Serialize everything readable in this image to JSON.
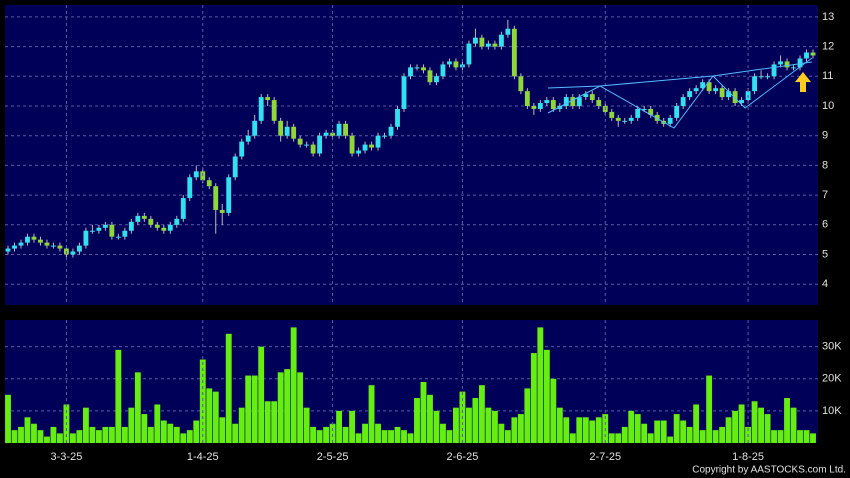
{
  "chart_data": [
    {
      "type": "candlestick",
      "up_color": "#33e0f0",
      "down_color": "#8fd63a",
      "grid": true,
      "ylim": [
        3.3,
        13.4
      ],
      "yticks": [
        4,
        5,
        6,
        7,
        8,
        9,
        10,
        11,
        12,
        13
      ],
      "ohlc": [
        [
          5.1,
          5.3,
          5.0,
          5.2
        ],
        [
          5.2,
          5.4,
          5.1,
          5.3
        ],
        [
          5.3,
          5.5,
          5.2,
          5.4
        ],
        [
          5.4,
          5.7,
          5.3,
          5.6
        ],
        [
          5.6,
          5.7,
          5.4,
          5.5
        ],
        [
          5.5,
          5.6,
          5.3,
          5.4
        ],
        [
          5.4,
          5.5,
          5.2,
          5.3
        ],
        [
          5.3,
          5.4,
          5.2,
          5.3
        ],
        [
          5.3,
          5.4,
          5.1,
          5.2
        ],
        [
          5.2,
          5.3,
          4.9,
          5.0
        ],
        [
          5.0,
          5.2,
          4.9,
          5.1
        ],
        [
          5.1,
          5.4,
          5.0,
          5.3
        ],
        [
          5.3,
          5.9,
          5.2,
          5.8
        ],
        [
          5.8,
          6.0,
          5.7,
          5.8
        ],
        [
          5.8,
          6.0,
          5.7,
          5.9
        ],
        [
          5.9,
          6.1,
          5.8,
          6.0
        ],
        [
          6.0,
          6.1,
          5.5,
          5.6
        ],
        [
          5.6,
          5.7,
          5.5,
          5.6
        ],
        [
          5.6,
          5.9,
          5.5,
          5.8
        ],
        [
          5.8,
          6.2,
          5.7,
          6.1
        ],
        [
          6.1,
          6.4,
          6.0,
          6.3
        ],
        [
          6.3,
          6.4,
          6.1,
          6.2
        ],
        [
          6.2,
          6.3,
          5.9,
          6.0
        ],
        [
          6.0,
          6.1,
          5.8,
          5.9
        ],
        [
          5.9,
          6.0,
          5.7,
          5.8
        ],
        [
          5.8,
          6.1,
          5.7,
          6.0
        ],
        [
          6.0,
          6.3,
          5.9,
          6.2
        ],
        [
          6.2,
          7.0,
          6.1,
          6.9
        ],
        [
          6.9,
          7.7,
          6.8,
          7.6
        ],
        [
          7.6,
          8.0,
          7.5,
          7.8
        ],
        [
          7.8,
          7.9,
          7.4,
          7.5
        ],
        [
          7.5,
          7.6,
          7.2,
          7.3
        ],
        [
          7.3,
          7.4,
          5.7,
          6.5
        ],
        [
          6.5,
          6.7,
          6.0,
          6.4
        ],
        [
          6.4,
          7.7,
          6.3,
          7.6
        ],
        [
          7.6,
          8.4,
          7.5,
          8.3
        ],
        [
          8.3,
          8.9,
          8.2,
          8.8
        ],
        [
          8.8,
          9.2,
          8.7,
          9.0
        ],
        [
          9.0,
          9.7,
          8.9,
          9.5
        ],
        [
          9.5,
          10.4,
          9.4,
          10.3
        ],
        [
          10.3,
          10.4,
          10.0,
          10.2
        ],
        [
          10.2,
          10.3,
          9.4,
          9.5
        ],
        [
          9.5,
          9.6,
          8.8,
          9.0
        ],
        [
          9.0,
          9.5,
          8.9,
          9.3
        ],
        [
          9.3,
          9.4,
          8.8,
          8.9
        ],
        [
          8.9,
          9.0,
          8.6,
          8.7
        ],
        [
          8.7,
          8.8,
          8.6,
          8.7
        ],
        [
          8.7,
          8.8,
          8.3,
          8.4
        ],
        [
          8.4,
          9.1,
          8.3,
          9.0
        ],
        [
          9.0,
          9.2,
          8.9,
          9.1
        ],
        [
          9.1,
          9.2,
          8.9,
          9.0
        ],
        [
          9.0,
          9.5,
          8.9,
          9.4
        ],
        [
          9.4,
          9.5,
          8.9,
          9.0
        ],
        [
          9.0,
          9.1,
          8.3,
          8.4
        ],
        [
          8.4,
          8.6,
          8.3,
          8.5
        ],
        [
          8.5,
          8.8,
          8.4,
          8.7
        ],
        [
          8.7,
          8.8,
          8.5,
          8.6
        ],
        [
          8.6,
          9.1,
          8.5,
          9.0
        ],
        [
          9.0,
          9.1,
          8.9,
          9.0
        ],
        [
          9.0,
          9.4,
          8.9,
          9.3
        ],
        [
          9.3,
          10.0,
          9.2,
          9.9
        ],
        [
          9.9,
          11.1,
          9.8,
          11.0
        ],
        [
          11.0,
          11.4,
          10.9,
          11.3
        ],
        [
          11.3,
          11.4,
          11.2,
          11.3
        ],
        [
          11.3,
          11.4,
          11.1,
          11.2
        ],
        [
          11.2,
          11.3,
          10.7,
          10.8
        ],
        [
          10.8,
          11.1,
          10.7,
          11.0
        ],
        [
          11.0,
          11.5,
          10.9,
          11.4
        ],
        [
          11.4,
          11.6,
          11.3,
          11.5
        ],
        [
          11.5,
          11.6,
          11.2,
          11.3
        ],
        [
          11.3,
          11.5,
          11.2,
          11.4
        ],
        [
          11.4,
          12.2,
          11.3,
          12.1
        ],
        [
          12.1,
          12.6,
          12.0,
          12.3
        ],
        [
          12.3,
          12.4,
          11.9,
          12.0
        ],
        [
          12.0,
          12.2,
          11.9,
          12.1
        ],
        [
          12.1,
          12.2,
          11.9,
          12.0
        ],
        [
          12.0,
          12.5,
          11.9,
          12.4
        ],
        [
          12.4,
          12.9,
          12.3,
          12.6
        ],
        [
          12.6,
          12.7,
          10.9,
          11.0
        ],
        [
          11.0,
          11.1,
          10.4,
          10.5
        ],
        [
          10.5,
          10.6,
          9.9,
          10.0
        ],
        [
          10.0,
          10.1,
          9.7,
          9.9
        ],
        [
          9.9,
          10.2,
          9.8,
          10.1
        ],
        [
          10.1,
          10.3,
          10.0,
          10.2
        ],
        [
          10.2,
          10.3,
          9.8,
          9.9
        ],
        [
          9.9,
          10.1,
          9.8,
          10.0
        ],
        [
          10.0,
          10.4,
          9.9,
          10.3
        ],
        [
          10.3,
          10.4,
          9.9,
          10.0
        ],
        [
          10.0,
          10.4,
          9.9,
          10.3
        ],
        [
          10.3,
          10.5,
          10.2,
          10.4
        ],
        [
          10.4,
          10.5,
          10.1,
          10.2
        ],
        [
          10.2,
          10.3,
          9.9,
          10.0
        ],
        [
          10.0,
          10.1,
          9.7,
          9.8
        ],
        [
          9.8,
          9.9,
          9.5,
          9.6
        ],
        [
          9.6,
          9.7,
          9.3,
          9.5
        ],
        [
          9.5,
          9.6,
          9.4,
          9.5
        ],
        [
          9.5,
          9.7,
          9.4,
          9.6
        ],
        [
          9.6,
          10.0,
          9.5,
          9.9
        ],
        [
          9.9,
          10.0,
          9.8,
          9.9
        ],
        [
          9.9,
          10.0,
          9.6,
          9.7
        ],
        [
          9.7,
          9.8,
          9.4,
          9.5
        ],
        [
          9.5,
          9.6,
          9.3,
          9.4
        ],
        [
          9.4,
          9.7,
          9.3,
          9.6
        ],
        [
          9.6,
          10.1,
          9.5,
          10.0
        ],
        [
          10.0,
          10.4,
          9.9,
          10.3
        ],
        [
          10.3,
          10.6,
          10.2,
          10.5
        ],
        [
          10.5,
          10.7,
          10.4,
          10.6
        ],
        [
          10.6,
          10.9,
          10.5,
          10.8
        ],
        [
          10.8,
          10.9,
          10.4,
          10.5
        ],
        [
          10.5,
          10.7,
          10.4,
          10.6
        ],
        [
          10.6,
          10.7,
          10.2,
          10.3
        ],
        [
          10.3,
          10.6,
          10.2,
          10.5
        ],
        [
          10.5,
          10.6,
          10.0,
          10.1
        ],
        [
          10.1,
          10.3,
          10.0,
          10.2
        ],
        [
          10.2,
          10.6,
          10.1,
          10.5
        ],
        [
          10.5,
          11.1,
          10.4,
          11.0
        ],
        [
          11.0,
          11.2,
          10.9,
          11.0
        ],
        [
          11.0,
          11.1,
          10.9,
          11.0
        ],
        [
          11.0,
          11.5,
          10.9,
          11.4
        ],
        [
          11.4,
          11.7,
          11.3,
          11.5
        ],
        [
          11.5,
          11.6,
          11.2,
          11.3
        ],
        [
          11.3,
          11.4,
          11.2,
          11.3
        ],
        [
          11.3,
          11.7,
          11.2,
          11.6
        ],
        [
          11.6,
          11.9,
          11.5,
          11.8
        ],
        [
          11.8,
          11.9,
          11.6,
          11.7
        ]
      ]
    },
    {
      "type": "bar",
      "color": "#66ee11",
      "grid": true,
      "ylim": [
        0,
        38300
      ],
      "yticks": [
        {
          "value": 10000,
          "label": "10K"
        },
        {
          "value": 20000,
          "label": "20K"
        },
        {
          "value": 30000,
          "label": "30K"
        }
      ],
      "categories": [
        null,
        null,
        null,
        null,
        null,
        null,
        null,
        null,
        null,
        "3-3-25",
        null,
        null,
        null,
        null,
        null,
        null,
        null,
        null,
        null,
        null,
        null,
        null,
        null,
        null,
        null,
        null,
        null,
        null,
        null,
        null,
        "1-4-25",
        null,
        null,
        null,
        null,
        null,
        null,
        null,
        null,
        null,
        null,
        null,
        null,
        null,
        null,
        null,
        null,
        null,
        null,
        null,
        "2-5-25",
        null,
        null,
        null,
        null,
        null,
        null,
        null,
        null,
        null,
        null,
        null,
        null,
        null,
        null,
        null,
        null,
        null,
        null,
        null,
        "2-6-25",
        null,
        null,
        null,
        null,
        null,
        null,
        null,
        null,
        null,
        null,
        null,
        null,
        null,
        null,
        null,
        null,
        null,
        null,
        null,
        null,
        null,
        "2-7-25",
        null,
        null,
        null,
        null,
        null,
        null,
        null,
        null,
        null,
        null,
        null,
        null,
        null,
        null,
        null,
        null,
        null,
        null,
        null,
        null,
        null,
        "1-8-25",
        null,
        null,
        null,
        null,
        null,
        null,
        null,
        null,
        null,
        null
      ],
      "values": [
        15000,
        4000,
        5000,
        8000,
        6000,
        4000,
        2000,
        5000,
        3000,
        12000,
        3000,
        4000,
        11000,
        5000,
        4000,
        5000,
        5000,
        29000,
        5000,
        11000,
        22000,
        9000,
        5000,
        12000,
        7000,
        6000,
        5000,
        3000,
        4000,
        7000,
        26000,
        17000,
        16000,
        8000,
        34000,
        6000,
        11000,
        21000,
        21000,
        30000,
        13000,
        13000,
        22000,
        23000,
        36000,
        22000,
        11000,
        5000,
        4000,
        5000,
        6000,
        10000,
        5000,
        10000,
        3000,
        6000,
        18000,
        6000,
        4000,
        4000,
        5000,
        4000,
        3000,
        14000,
        19000,
        15000,
        10000,
        6000,
        4000,
        11000,
        16000,
        11000,
        14000,
        18000,
        11000,
        10000,
        6000,
        4000,
        8000,
        9000,
        17000,
        28000,
        36000,
        29000,
        20000,
        11000,
        8000,
        3000,
        8000,
        8000,
        7000,
        8000,
        9000,
        3000,
        3000,
        5000,
        10000,
        9000,
        6000,
        3000,
        7000,
        7000,
        2000,
        9000,
        7000,
        5000,
        12000,
        4000,
        21000,
        4000,
        5000,
        8000,
        10000,
        12000,
        5000,
        13000,
        11000,
        9000,
        4000,
        4000,
        14000,
        11000,
        4000,
        4000,
        3000
      ]
    }
  ],
  "copyright": "Copyright by AASTOCKS.com Ltd."
}
